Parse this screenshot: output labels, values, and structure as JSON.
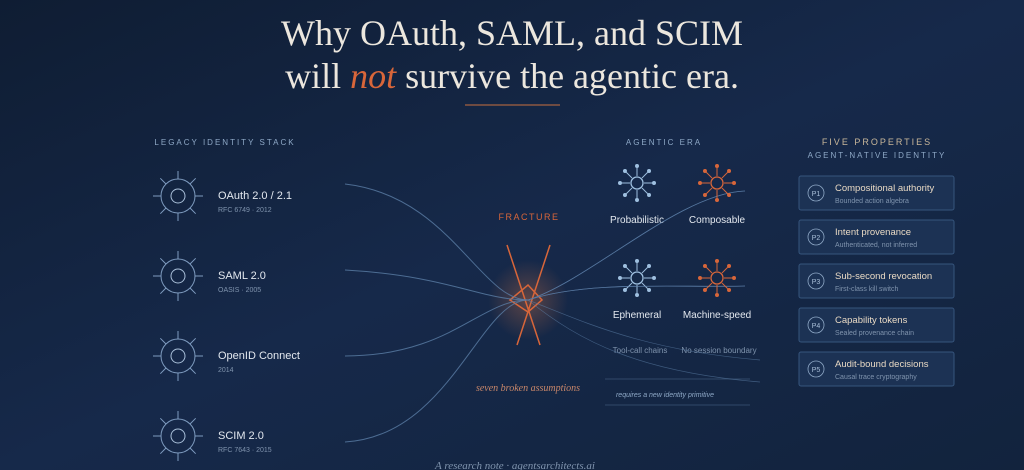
{
  "header": {
    "title_line1": "Why OAuth, SAML, and SCIM",
    "title_line2_start": "will",
    "title_line2_emphasis": "not",
    "title_line2_end": "survive the agentic era."
  },
  "legacy": {
    "heading": "LEGACY IDENTITY STACK",
    "items": [
      {
        "name": "OAuth 2.0 / 2.1",
        "detail": "RFC 6749 · 2012"
      },
      {
        "name": "SAML 2.0",
        "detail": "OASIS · 2005"
      },
      {
        "name": "OpenID Connect",
        "detail": "2014"
      },
      {
        "name": "SCIM 2.0",
        "detail": "RFC 7643 · 2015"
      }
    ]
  },
  "fracture": {
    "label": "FRACTURE",
    "caption": "seven broken assumptions"
  },
  "agentic": {
    "heading": "AGENTIC ERA",
    "traits": [
      "Probabilistic",
      "Composable",
      "Ephemeral",
      "Machine-speed"
    ],
    "minor": [
      "Tool-call chains",
      "No session boundary"
    ],
    "note": "requires a new identity primitive"
  },
  "properties": {
    "heading": "FIVE PROPERTIES",
    "subheading": "AGENT-NATIVE IDENTITY",
    "items": [
      {
        "badge": "P1",
        "title": "Compositional authority",
        "detail": "Bounded action algebra"
      },
      {
        "badge": "P2",
        "title": "Intent provenance",
        "detail": "Authenticated, not inferred"
      },
      {
        "badge": "P3",
        "title": "Sub-second revocation",
        "detail": "First-class kill switch"
      },
      {
        "badge": "P4",
        "title": "Capability tokens",
        "detail": "Sealed provenance chain"
      },
      {
        "badge": "P5",
        "title": "Audit-bound decisions",
        "detail": "Causal trace cryptography"
      }
    ]
  },
  "footer": {
    "text": "A research note · agentsarchitects.ai"
  }
}
